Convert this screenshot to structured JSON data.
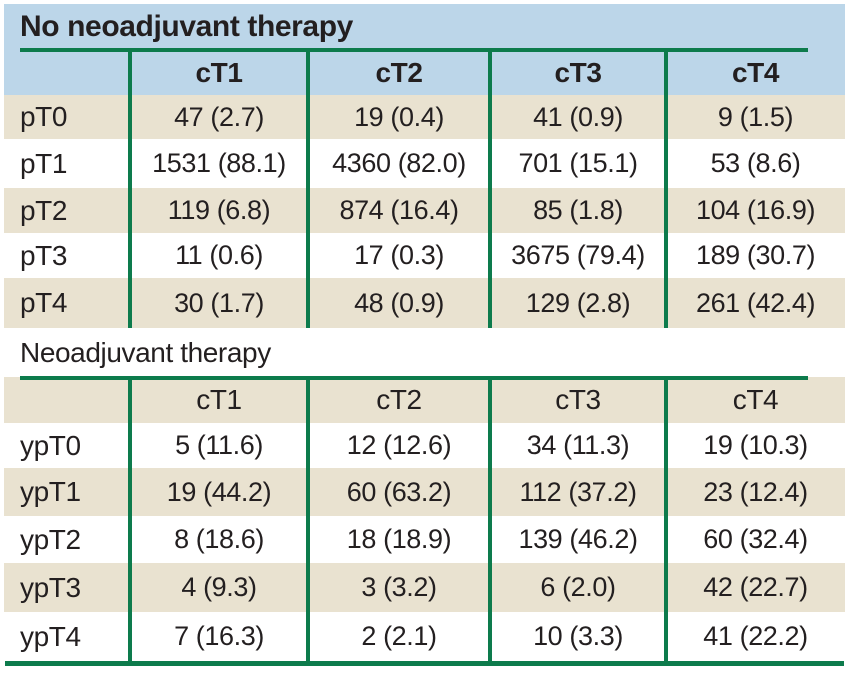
{
  "colors": {
    "header_blue": "#bcd6e9",
    "row_beige": "#e9e2d0",
    "row_white": "#ffffff",
    "rule_green": "#0d7b4c",
    "text": "#231f20"
  },
  "chart_data": [
    {
      "type": "table",
      "title": "No neoadjuvant therapy",
      "columns": [
        "cT1",
        "cT2",
        "cT3",
        "cT4"
      ],
      "rows": [
        {
          "label": "pT0",
          "values": [
            "47 (2.7)",
            "19 (0.4)",
            "41 (0.9)",
            "9 (1.5)"
          ]
        },
        {
          "label": "pT1",
          "values": [
            "1531 (88.1)",
            "4360 (82.0)",
            "701 (15.1)",
            "53 (8.6)"
          ]
        },
        {
          "label": "pT2",
          "values": [
            "119 (6.8)",
            "874 (16.4)",
            "85 (1.8)",
            "104 (16.9)"
          ]
        },
        {
          "label": "pT3",
          "values": [
            "11 (0.6)",
            "17 (0.3)",
            "3675 (79.4)",
            "189 (30.7)"
          ]
        },
        {
          "label": "pT4",
          "values": [
            "30 (1.7)",
            "48 (0.9)",
            "129 (2.8)",
            "261 (42.4)"
          ]
        }
      ]
    },
    {
      "type": "table",
      "title": "Neoadjuvant therapy",
      "columns": [
        "cT1",
        "cT2",
        "cT3",
        "cT4"
      ],
      "rows": [
        {
          "label": "ypT0",
          "values": [
            "5 (11.6)",
            "12 (12.6)",
            "34 (11.3)",
            "19 (10.3)"
          ]
        },
        {
          "label": "ypT1",
          "values": [
            "19 (44.2)",
            "60 (63.2)",
            "112 (37.2)",
            "23 (12.4)"
          ]
        },
        {
          "label": "ypT2",
          "values": [
            "8 (18.6)",
            "18 (18.9)",
            "139 (46.2)",
            "60 (32.4)"
          ]
        },
        {
          "label": "ypT3",
          "values": [
            "4 (9.3)",
            "3 (3.2)",
            "6 (2.0)",
            "42 (22.7)"
          ]
        },
        {
          "label": "ypT4",
          "values": [
            "7 (16.3)",
            "2 (2.1)",
            "10 (3.3)",
            "41 (22.2)"
          ]
        }
      ]
    }
  ]
}
